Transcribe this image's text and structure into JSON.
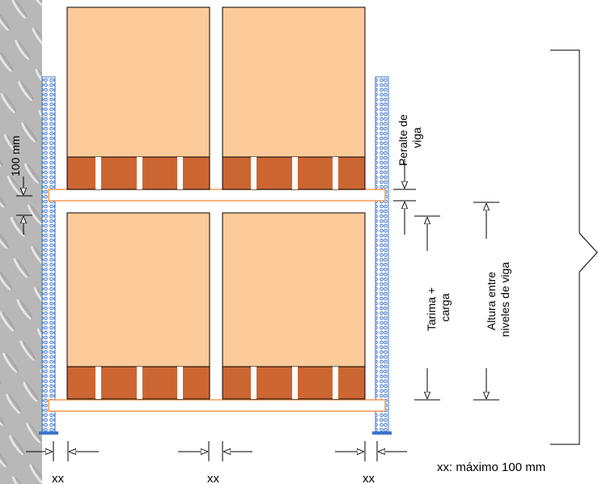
{
  "labels": {
    "peralte": [
      "Peralte de",
      "viga"
    ],
    "gap": "100 mm",
    "tarima": [
      "Tarima  +",
      "carga"
    ],
    "altura": [
      "Altura entre",
      "niveles de viga"
    ],
    "xx": [
      "xx",
      "xx",
      "xx"
    ],
    "note": "xx: máximo 100 mm"
  },
  "colors": {
    "load": "#fdcb99",
    "pallet": "#cc6633",
    "beam": "#f39a4e",
    "upright": "#3e74cc",
    "floor": "#b4b4b4"
  }
}
